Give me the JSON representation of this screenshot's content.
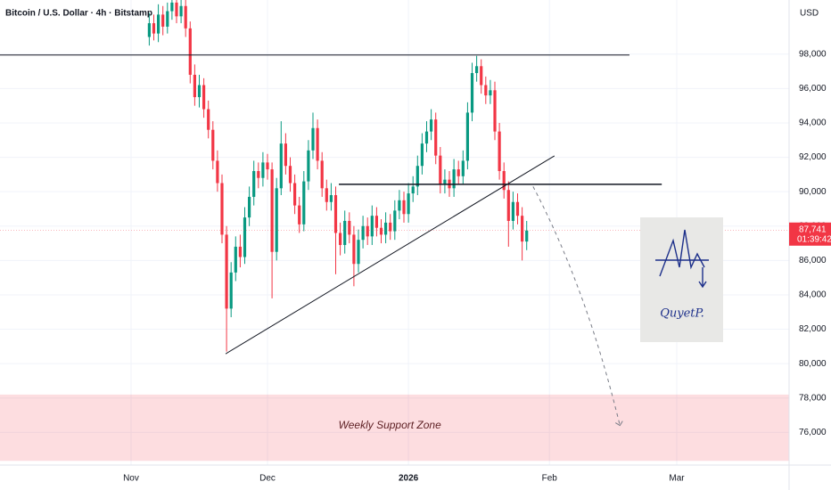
{
  "chart_data": {
    "type": "candlestick",
    "title": "Bitcoin / U.S. Dollar · 4h · Bitstamp",
    "currency": "USD",
    "up_color": "#089981",
    "down_color": "#f23645",
    "xlim": [
      -28.82,
      144.7
    ],
    "xticks": [
      {
        "value": 0,
        "label": "Nov"
      },
      {
        "value": 30,
        "label": "Dec"
      },
      {
        "value": 61,
        "label": "2026"
      },
      {
        "value": 92,
        "label": "Feb"
      },
      {
        "value": 120,
        "label": "Mar"
      }
    ],
    "ylim": [
      74100,
      101150
    ],
    "yticks": [
      {
        "value": 76000,
        "label": "76,000"
      },
      {
        "value": 78000,
        "label": "78,000"
      },
      {
        "value": 80000,
        "label": "80,000"
      },
      {
        "value": 82000,
        "label": "82,000"
      },
      {
        "value": 84000,
        "label": "84,000"
      },
      {
        "value": 86000,
        "label": "86,000"
      },
      {
        "value": 88000,
        "label": "88,000"
      },
      {
        "value": 90000,
        "label": "90,000"
      },
      {
        "value": 92000,
        "label": "92,000"
      },
      {
        "value": 94000,
        "label": "94,000"
      },
      {
        "value": 96000,
        "label": "96,000"
      },
      {
        "value": 98000,
        "label": "98,000"
      }
    ],
    "grid": true,
    "x": [
      4,
      5,
      6,
      7,
      8,
      9,
      10,
      11,
      12,
      13,
      14,
      15,
      16,
      17,
      18,
      19,
      20,
      21,
      22,
      23,
      24,
      25,
      26,
      27,
      28,
      29,
      30,
      31,
      32,
      33,
      34,
      35,
      36,
      37,
      38,
      39,
      40,
      41,
      42,
      43,
      44,
      45,
      46,
      47,
      48,
      49,
      50,
      51,
      52,
      53,
      54,
      55,
      56,
      57,
      58,
      59,
      60,
      61,
      62,
      63,
      64,
      65,
      66,
      67,
      68,
      69,
      70,
      71,
      72,
      73,
      74,
      75,
      76,
      77,
      78,
      79,
      80,
      81,
      82,
      83,
      84,
      85,
      86,
      87
    ],
    "open": [
      99000,
      99800,
      99200,
      100300,
      99600,
      100500,
      101000,
      100200,
      100800,
      99500,
      96800,
      95500,
      96200,
      94800,
      93600,
      91800,
      90500,
      87500,
      83200,
      85300,
      86800,
      86200,
      88500,
      89700,
      91200,
      90800,
      91700,
      91300,
      86500,
      90200,
      92800,
      91500,
      90500,
      89200,
      88100,
      90600,
      92400,
      93700,
      91800,
      90200,
      89400,
      89800,
      87600,
      86900,
      88300,
      87500,
      85800,
      87200,
      88000,
      87400,
      88600,
      87900,
      87500,
      88200,
      87700,
      88900,
      89500,
      88700,
      89900,
      90300,
      91500,
      92800,
      93500,
      94200,
      92100,
      90400,
      90700,
      90200,
      91300,
      90900,
      91800,
      94600,
      96900,
      97300,
      96200,
      95600,
      95900,
      93500,
      91200,
      90100,
      88300,
      89400,
      88600,
      87100
    ],
    "high": [
      100400,
      100300,
      100900,
      100800,
      101000,
      101500,
      101400,
      101300,
      101200,
      99900,
      97400,
      96800,
      96600,
      95300,
      94100,
      92400,
      91000,
      88000,
      85900,
      87400,
      87500,
      89100,
      90300,
      91800,
      91700,
      92300,
      92200,
      91700,
      90800,
      94100,
      93400,
      92000,
      91000,
      89700,
      91200,
      93000,
      94600,
      94200,
      92300,
      90700,
      90500,
      90300,
      88200,
      88900,
      88800,
      88000,
      87800,
      88600,
      88500,
      89200,
      89100,
      88400,
      88800,
      88700,
      89500,
      90100,
      90000,
      90500,
      90900,
      92100,
      93400,
      94100,
      94800,
      94600,
      92600,
      91300,
      91200,
      91900,
      91800,
      92400,
      95200,
      97500,
      97900,
      97700,
      96700,
      96500,
      96400,
      94000,
      91700,
      90600,
      90000,
      89900,
      89100,
      88300
    ],
    "low": [
      98500,
      98800,
      98700,
      99100,
      99200,
      100000,
      99800,
      99800,
      99000,
      96300,
      95000,
      94900,
      94300,
      93100,
      91300,
      90000,
      87000,
      80700,
      82700,
      84800,
      85600,
      85800,
      88000,
      89200,
      90200,
      90300,
      90700,
      83800,
      86000,
      89800,
      91000,
      90000,
      88700,
      87600,
      87700,
      90100,
      91900,
      91300,
      89700,
      88900,
      88900,
      85200,
      86300,
      86400,
      87000,
      84500,
      85300,
      86700,
      86900,
      86900,
      87400,
      87000,
      87000,
      87200,
      87200,
      88400,
      88200,
      88200,
      89400,
      89800,
      91000,
      92300,
      93000,
      91600,
      89900,
      89900,
      89700,
      89700,
      90400,
      90400,
      91300,
      94100,
      96400,
      95700,
      95100,
      95100,
      93000,
      90700,
      89600,
      86800,
      87800,
      88100,
      86000,
      86600
    ],
    "close": [
      99800,
      99200,
      100300,
      99600,
      100500,
      101000,
      100200,
      100800,
      99500,
      96800,
      95500,
      96200,
      94800,
      93600,
      91800,
      90500,
      87500,
      83200,
      85300,
      86800,
      86200,
      88500,
      89700,
      91200,
      90800,
      91700,
      91300,
      86500,
      90200,
      92800,
      91500,
      90500,
      89200,
      88100,
      90600,
      92400,
      93700,
      91800,
      90200,
      89400,
      89800,
      87600,
      86900,
      88300,
      87500,
      85800,
      87200,
      88000,
      87400,
      88600,
      87900,
      87500,
      88200,
      87700,
      88900,
      89500,
      88700,
      89900,
      90300,
      91500,
      92800,
      93500,
      94200,
      92100,
      90400,
      90700,
      90200,
      91300,
      90900,
      91800,
      94600,
      96900,
      97300,
      96200,
      95600,
      95900,
      93500,
      91200,
      90100,
      88300,
      89400,
      88600,
      87100,
      87741
    ],
    "last_price_label": "87,741",
    "countdown": "01:39:42",
    "drawings": {
      "resistance": {
        "price": 97950,
        "x": [
          -28.82,
          109.6
        ]
      },
      "neckline": {
        "price": 90430,
        "x": [
          45.7,
          116.7
        ]
      },
      "trendline": {
        "x": [
          20.8,
          93.1
        ],
        "price": [
          80570,
          92086
        ]
      },
      "projection": {
        "x": [
          88.4,
          107.5
        ],
        "price": [
          90300,
          76400
        ]
      },
      "support_zone": {
        "price": [
          78200,
          74343
        ],
        "label": "Weekly Support Zone",
        "label_x": 56.9,
        "label_price": 76400
      }
    },
    "signature": "QuyetP."
  }
}
